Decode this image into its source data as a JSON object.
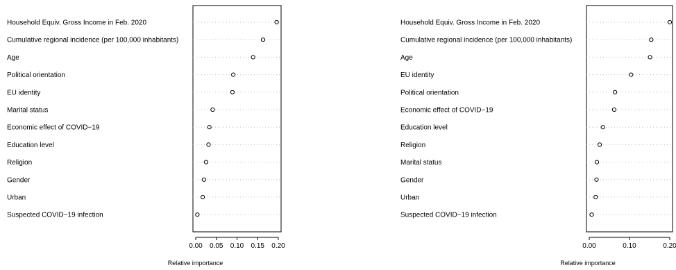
{
  "chart_data": [
    {
      "type": "scatter",
      "xlabel": "Relative importance",
      "xlim": [
        0,
        0.2
      ],
      "xticks": [
        "0.00",
        "0.05",
        "0.10",
        "0.15",
        "0.20"
      ],
      "grid": "dotted-horizontal",
      "categories": [
        "Household Equiv. Gross Income in Feb. 2020",
        "Cumulative regional incidence (per 100,000 inhabitants)",
        "Age",
        "Political orientation",
        "EU identity",
        "Marital status",
        "Economic effect of COVID−19",
        "Education level",
        "Religion",
        "Gender",
        "Urban",
        "Suspected COVID−19 infection"
      ],
      "values": [
        0.196,
        0.163,
        0.139,
        0.091,
        0.089,
        0.041,
        0.033,
        0.031,
        0.025,
        0.02,
        0.017,
        0.004
      ]
    },
    {
      "type": "scatter",
      "xlabel": "Relative importance",
      "xlim": [
        0,
        0.2
      ],
      "xticks": [
        "0.00",
        "0.10",
        "0.20"
      ],
      "grid": "dotted-horizontal",
      "categories": [
        "Household Equiv. Gross Income in Feb. 2020",
        "Cumulative regional incidence (per 100,000 inhabitants)",
        "Age",
        "EU identity",
        "Political orientation",
        "Economic effect of COVID−19",
        "Education level",
        "Religion",
        "Marital status",
        "Gender",
        "Urban",
        "Suspected COVID−19 infection"
      ],
      "values": [
        0.2,
        0.154,
        0.151,
        0.104,
        0.064,
        0.062,
        0.034,
        0.026,
        0.019,
        0.018,
        0.016,
        0.006
      ]
    }
  ]
}
